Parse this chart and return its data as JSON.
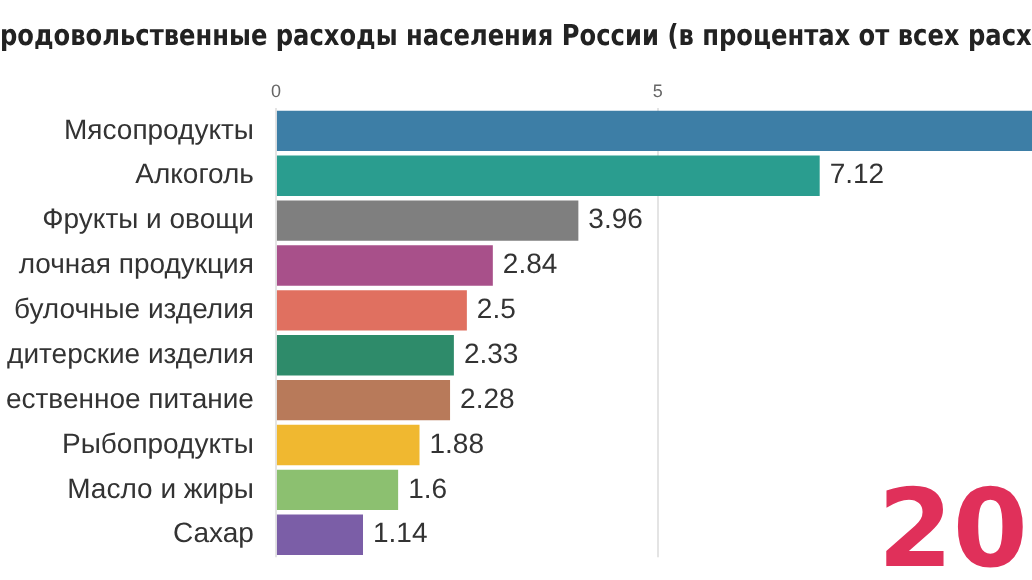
{
  "chart_data": {
    "type": "bar",
    "orientation": "horizontal",
    "title": "родовольственные расходы населения России (в процентах от всех расх",
    "categories": [
      "Мясопродукты",
      "Алкоголь",
      "Фрукты и овощи",
      "лочная продукция",
      "булочные изделия",
      "дитерские изделия",
      "ественное питание",
      "Рыбопродукты",
      "Масло и жиры",
      "Сахар"
    ],
    "values": [
      9.9,
      7.12,
      3.96,
      2.84,
      2.5,
      2.33,
      2.28,
      1.88,
      1.6,
      1.14
    ],
    "value_labels": [
      null,
      "7.12",
      "3.96",
      "2.84",
      "2.5",
      "2.33",
      "2.28",
      "1.88",
      "1.6",
      "1.14"
    ],
    "colors": [
      "#3d7ea6",
      "#2a9d8f",
      "#7f7f7f",
      "#a8508a",
      "#e07060",
      "#2e8b6a",
      "#b87a5a",
      "#f0b830",
      "#8cc070",
      "#7b5ea7"
    ],
    "xlim": [
      0,
      9.9
    ],
    "xticks": [
      0,
      5
    ],
    "grid": "x",
    "annotations": [
      "20"
    ]
  }
}
